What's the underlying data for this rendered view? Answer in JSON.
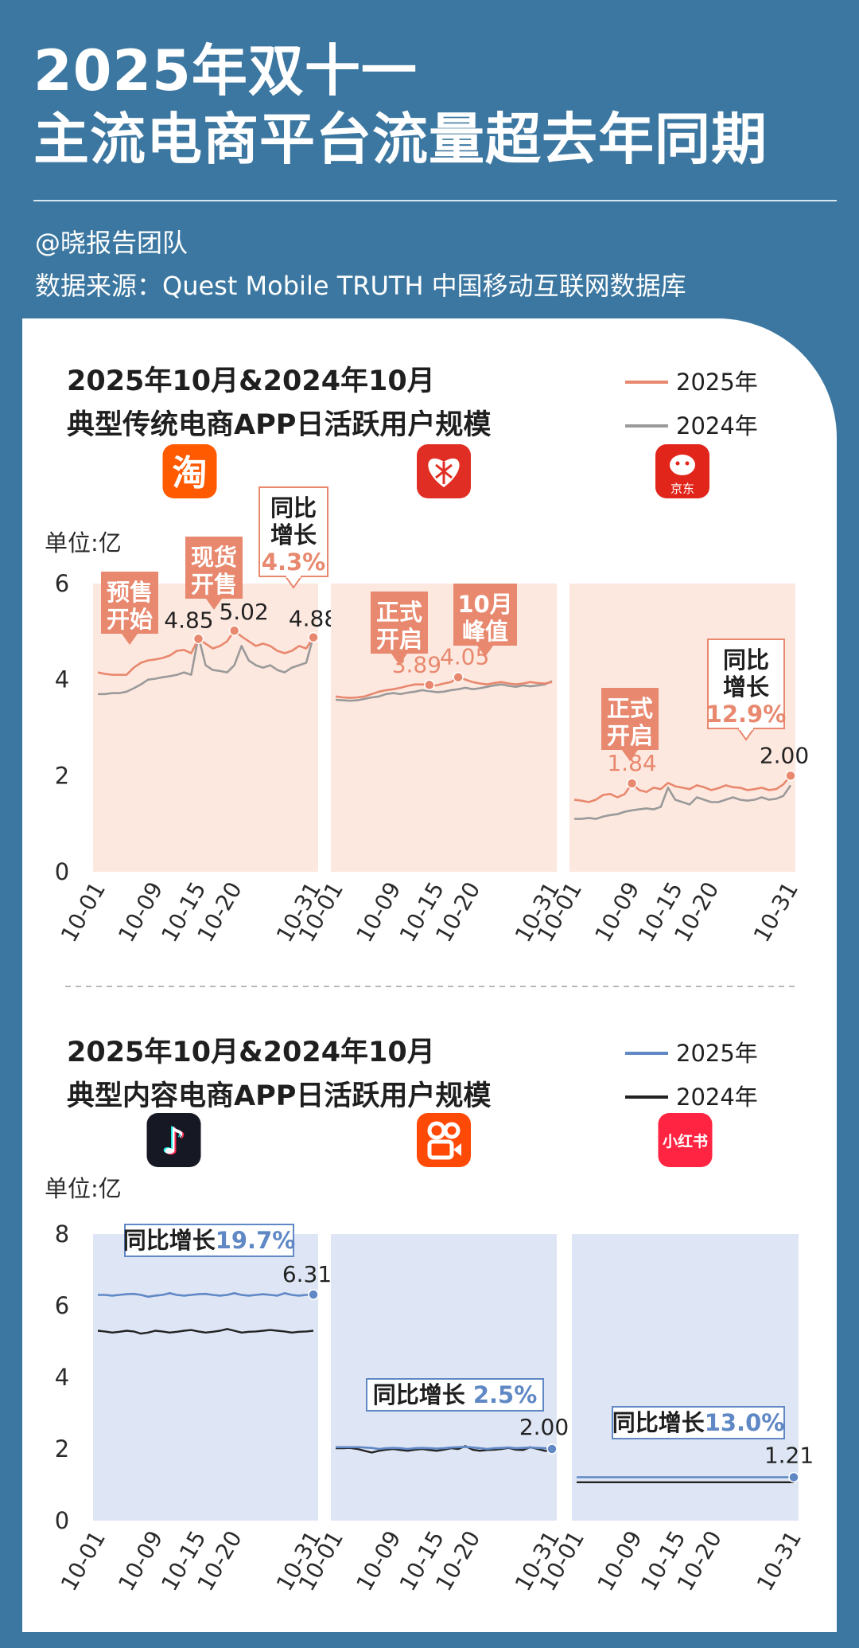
{
  "header": {
    "title_line1": "2025年双十一",
    "title_line2": "主流电商平台流量超去年同期",
    "author": "@晓报告团队",
    "source": "数据来源：Quest Mobile TRUTH 中国移动互联网数据库"
  },
  "colors": {
    "background": "#3b77a0",
    "orange_2025": "#e8886e",
    "gray_2024": "#9a9a9a",
    "orange_panel": "#fde8df",
    "blue_2025": "#5f88c5",
    "black_2024": "#222222",
    "blue_panel": "#dee5f4"
  },
  "chart_data": [
    {
      "type": "line",
      "title_line1": "2025年10月&2024年10月",
      "title_line2": "典型传统电商APP日活跃用户规模",
      "unit": "单位:亿",
      "ylim": [
        0,
        6
      ],
      "yticks": [
        "0",
        "2",
        "4",
        "6"
      ],
      "xticks": [
        "10-01",
        "10-09",
        "10-15",
        "10-20",
        "10-31"
      ],
      "legend": [
        "2025年",
        "2024年"
      ],
      "panels": [
        {
          "icon": "taobao-app-icon",
          "icon_text": "淘",
          "series": [
            {
              "name": "2025年",
              "values": [
                4.15,
                4.12,
                4.1,
                4.1,
                4.1,
                4.25,
                4.35,
                4.4,
                4.42,
                4.45,
                4.5,
                4.6,
                4.62,
                4.55,
                4.85,
                4.75,
                4.65,
                4.7,
                4.8,
                5.02,
                4.9,
                4.8,
                4.7,
                4.75,
                4.7,
                4.6,
                4.55,
                4.6,
                4.7,
                4.65,
                4.88
              ]
            },
            {
              "name": "2024年",
              "values": [
                3.7,
                3.7,
                3.72,
                3.72,
                3.75,
                3.82,
                3.9,
                4.0,
                4.02,
                4.05,
                4.07,
                4.1,
                4.15,
                4.1,
                4.9,
                4.3,
                4.2,
                4.18,
                4.15,
                4.3,
                4.7,
                4.4,
                4.3,
                4.25,
                4.3,
                4.2,
                4.15,
                4.25,
                4.3,
                4.35,
                4.9
              ]
            }
          ],
          "annotations": [
            {
              "text": [
                "预售",
                "开始"
              ]
            },
            {
              "text": [
                "现货",
                "开售"
              ]
            },
            {
              "text": [
                "同比",
                "增长"
              ],
              "value": "4.3%"
            }
          ],
          "labels": [
            {
              "index": 14,
              "text": "4.85"
            },
            {
              "index": 19,
              "text": "5.02"
            },
            {
              "index": 30,
              "text": "4.88"
            }
          ]
        },
        {
          "icon": "pinduoduo-app-icon",
          "icon_text": "",
          "series": [
            {
              "name": "2025年",
              "values": [
                3.65,
                3.63,
                3.62,
                3.63,
                3.65,
                3.7,
                3.75,
                3.78,
                3.8,
                3.83,
                3.87,
                3.9,
                3.9,
                3.89,
                3.88,
                3.92,
                3.95,
                4.05,
                4.0,
                3.95,
                3.92,
                3.9,
                3.93,
                3.95,
                3.92,
                3.9,
                3.92,
                3.95,
                3.93,
                3.92,
                3.95
              ]
            },
            {
              "name": "2024年",
              "values": [
                3.58,
                3.57,
                3.56,
                3.57,
                3.6,
                3.63,
                3.65,
                3.7,
                3.72,
                3.7,
                3.73,
                3.75,
                3.78,
                3.76,
                3.74,
                3.75,
                3.78,
                3.8,
                3.83,
                3.8,
                3.82,
                3.85,
                3.88,
                3.9,
                3.87,
                3.85,
                3.88,
                3.86,
                3.88,
                3.9,
                3.97
              ]
            }
          ],
          "annotations": [
            {
              "text": [
                "正式",
                "开启"
              ]
            },
            {
              "text": [
                "10月",
                "峰值"
              ]
            }
          ],
          "labels": [
            {
              "index": 13,
              "text": "3.89"
            },
            {
              "index": 17,
              "text": "4.05"
            }
          ]
        },
        {
          "icon": "jd-app-icon",
          "icon_text": "京东",
          "series": [
            {
              "name": "2025年",
              "values": [
                1.5,
                1.48,
                1.45,
                1.5,
                1.6,
                1.62,
                1.55,
                1.62,
                1.84,
                1.7,
                1.66,
                1.75,
                1.72,
                1.85,
                1.78,
                1.75,
                1.72,
                1.8,
                1.76,
                1.7,
                1.74,
                1.8,
                1.76,
                1.75,
                1.7,
                1.72,
                1.75,
                1.7,
                1.72,
                1.82,
                2.0
              ]
            },
            {
              "name": "2024年",
              "values": [
                1.1,
                1.1,
                1.12,
                1.1,
                1.15,
                1.18,
                1.2,
                1.25,
                1.28,
                1.3,
                1.32,
                1.3,
                1.35,
                1.75,
                1.5,
                1.45,
                1.4,
                1.55,
                1.5,
                1.45,
                1.45,
                1.5,
                1.55,
                1.5,
                1.48,
                1.5,
                1.55,
                1.5,
                1.52,
                1.58,
                1.8
              ]
            }
          ],
          "annotations": [
            {
              "text": [
                "正式",
                "开启"
              ]
            },
            {
              "text": [
                "同比",
                "增长"
              ],
              "value": "12.9%"
            }
          ],
          "labels": [
            {
              "index": 8,
              "text": "1.84"
            },
            {
              "index": 30,
              "text": "2.00"
            }
          ]
        }
      ]
    },
    {
      "type": "line",
      "title_line1": "2025年10月&2024年10月",
      "title_line2": "典型内容电商APP日活跃用户规模",
      "unit": "单位:亿",
      "ylim": [
        0,
        8
      ],
      "yticks": [
        "0",
        "2",
        "4",
        "6",
        "8"
      ],
      "xticks": [
        "10-01",
        "10-09",
        "10-15",
        "10-20",
        "10-31"
      ],
      "legend": [
        "2025年",
        "2024年"
      ],
      "panels": [
        {
          "icon": "douyin-app-icon",
          "icon_text": "♪",
          "series": [
            {
              "name": "2025年",
              "values": [
                6.3,
                6.3,
                6.28,
                6.3,
                6.32,
                6.33,
                6.3,
                6.25,
                6.28,
                6.3,
                6.35,
                6.3,
                6.28,
                6.3,
                6.32,
                6.33,
                6.3,
                6.28,
                6.3,
                6.35,
                6.3,
                6.28,
                6.3,
                6.32,
                6.3,
                6.28,
                6.35,
                6.3,
                6.28,
                6.3,
                6.31
              ]
            },
            {
              "name": "2024年",
              "values": [
                5.3,
                5.28,
                5.25,
                5.27,
                5.3,
                5.28,
                5.22,
                5.25,
                5.3,
                5.28,
                5.25,
                5.27,
                5.3,
                5.32,
                5.28,
                5.25,
                5.27,
                5.3,
                5.35,
                5.3,
                5.25,
                5.27,
                5.28,
                5.3,
                5.32,
                5.3,
                5.28,
                5.25,
                5.27,
                5.28,
                5.3
              ]
            }
          ],
          "annotations": [
            {
              "text": [
                "同比增长"
              ],
              "value": "19.7%"
            }
          ],
          "labels": [
            {
              "index": 30,
              "text": "6.31"
            }
          ]
        },
        {
          "icon": "kuaishou-app-icon",
          "icon_text": "",
          "series": [
            {
              "name": "2025年",
              "values": [
                2.05,
                2.05,
                2.05,
                2.05,
                2.04,
                2.03,
                2.0,
                2.02,
                2.03,
                2.02,
                2.0,
                2.02,
                2.03,
                2.02,
                2.01,
                2.02,
                2.04,
                2.05,
                2.06,
                2.04,
                2.02,
                2.0,
                2.02,
                2.03,
                2.04,
                2.02,
                2.03,
                2.04,
                2.03,
                2.02,
                2.0
              ]
            },
            {
              "name": "2024年",
              "values": [
                2.02,
                2.02,
                2.03,
                2.0,
                1.95,
                1.9,
                1.95,
                1.98,
                2.0,
                1.97,
                1.95,
                1.98,
                2.0,
                1.97,
                1.95,
                1.98,
                2.02,
                2.0,
                2.08,
                1.98,
                1.95,
                1.97,
                1.98,
                2.0,
                2.03,
                1.98,
                1.97,
                2.05,
                2.0,
                1.95,
                1.95
              ]
            }
          ],
          "annotations": [
            {
              "text": [
                "同比增长 "
              ],
              "value": "2.5%"
            }
          ],
          "labels": [
            {
              "index": 30,
              "text": "2.00"
            }
          ]
        },
        {
          "icon": "xiaohongshu-app-icon",
          "icon_text": "小红书",
          "series": [
            {
              "name": "2025年",
              "values": [
                1.21,
                1.21,
                1.21,
                1.21,
                1.21,
                1.21,
                1.21,
                1.21,
                1.21,
                1.21,
                1.21,
                1.21,
                1.21,
                1.21,
                1.21,
                1.21,
                1.21,
                1.21,
                1.21,
                1.21,
                1.21,
                1.21,
                1.21,
                1.21,
                1.21,
                1.21,
                1.21,
                1.21,
                1.21,
                1.21,
                1.21
              ]
            },
            {
              "name": "2024年",
              "values": [
                1.07,
                1.07,
                1.07,
                1.07,
                1.07,
                1.07,
                1.07,
                1.07,
                1.07,
                1.07,
                1.07,
                1.07,
                1.07,
                1.07,
                1.07,
                1.07,
                1.07,
                1.07,
                1.07,
                1.07,
                1.07,
                1.07,
                1.07,
                1.07,
                1.07,
                1.07,
                1.07,
                1.07,
                1.07,
                1.07,
                1.07
              ]
            }
          ],
          "annotations": [
            {
              "text": [
                "同比增长"
              ],
              "value": "13.0%"
            }
          ],
          "labels": [
            {
              "index": 30,
              "text": "1.21"
            }
          ]
        }
      ]
    }
  ]
}
